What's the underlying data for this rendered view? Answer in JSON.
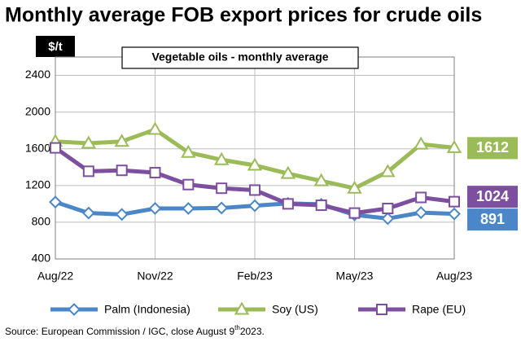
{
  "chart_data": {
    "type": "line",
    "title": "Monthly average FOB export prices for crude oils",
    "subtitle": "Vegetable oils - monthly average",
    "y_label": "$/t",
    "categories": [
      "Aug/22",
      null,
      null,
      "Nov/22",
      null,
      null,
      "Feb/23",
      null,
      null,
      "May/23",
      null,
      null,
      "Aug/23"
    ],
    "series": [
      {
        "name": "Palm (Indonesia)",
        "color": "#4a86c8",
        "marker": "diamond",
        "values": [
          1020,
          900,
          885,
          950,
          950,
          955,
          980,
          1005,
          995,
          880,
          840,
          905,
          891
        ]
      },
      {
        "name": "Soy (US)",
        "color": "#9bbb59",
        "marker": "triangle",
        "values": [
          1680,
          1660,
          1680,
          1810,
          1560,
          1480,
          1420,
          1330,
          1250,
          1170,
          1350,
          1650,
          1612
        ]
      },
      {
        "name": "Rape (EU)",
        "color": "#7d4f9f",
        "marker": "square",
        "values": [
          1610,
          1355,
          1365,
          1340,
          1210,
          1170,
          1150,
          1000,
          985,
          900,
          950,
          1070,
          1024
        ]
      }
    ],
    "ylim": [
      400,
      2600
    ],
    "yticks": [
      400,
      800,
      1200,
      1600,
      2000,
      2400
    ],
    "grid": true,
    "source": {
      "text": "Source: European Commission / IGC, close August 9",
      "superscript": "th",
      "tail": "2023."
    }
  }
}
